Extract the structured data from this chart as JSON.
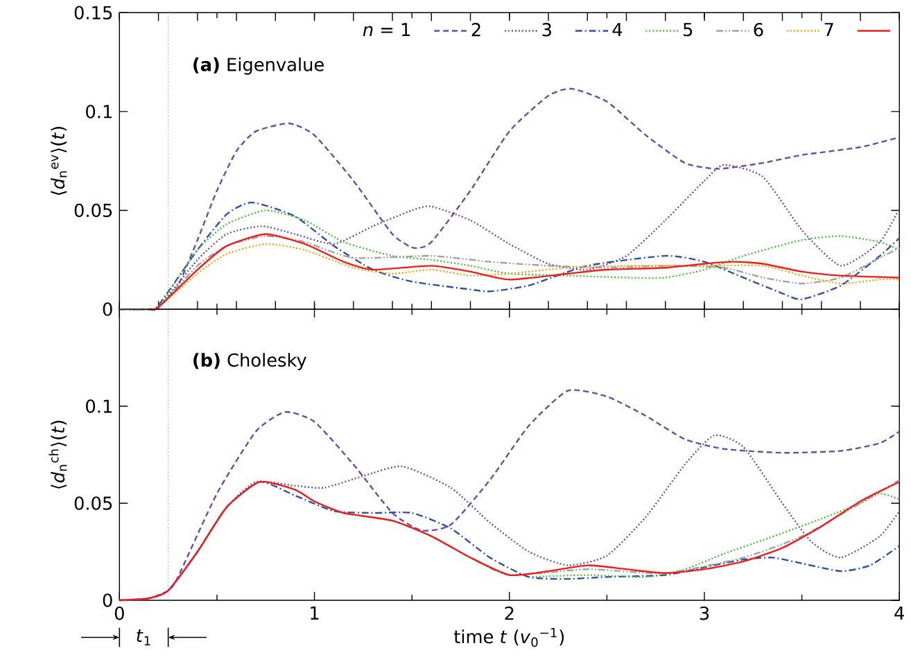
{
  "chart_data": [
    {
      "type": "line",
      "ylabel": "⟨*d*$_{n}$$^{ev}$⟩(*t*)",
      "xlim": [
        0,
        4
      ],
      "ylim": [
        0,
        0.15
      ],
      "xticks": [
        {
          "value": 0,
          "label": null
        },
        {
          "value": 0.5,
          "label": null
        },
        {
          "value": 1,
          "label": null
        },
        {
          "value": 1.5,
          "label": null
        },
        {
          "value": 2,
          "label": null
        },
        {
          "value": 2.5,
          "label": null
        },
        {
          "value": 3,
          "label": null
        },
        {
          "value": 3.5,
          "label": null
        },
        {
          "value": 4,
          "label": null
        }
      ],
      "yticks": [
        0,
        0.05,
        0.1,
        0.15
      ],
      "tick_labels": "y",
      "legend": "top",
      "annotations": [
        "**(a)** Eigenvalue"
      ],
      "ref_lines": [
        {
          "axis": "x",
          "value": 0.25,
          "color": "#b0b0b0",
          "line_style": "dotted"
        }
      ],
      "series": [
        {
          "name": "*n* = 1",
          "color": "#6a4aa8",
          "line_style": "dashed",
          "x": [
            0,
            0.15,
            0.2,
            0.3,
            0.4,
            0.5,
            0.6,
            0.7,
            0.87,
            1.0,
            1.2,
            1.4,
            1.51,
            1.6,
            1.8,
            2.0,
            2.2,
            2.32,
            2.5,
            2.7,
            2.9,
            3.07,
            3.3,
            3.5,
            3.8,
            4
          ],
          "values": [
            0,
            0,
            0.001,
            0.012,
            0.035,
            0.06,
            0.08,
            0.09,
            0.094,
            0.088,
            0.065,
            0.038,
            0.031,
            0.034,
            0.06,
            0.09,
            0.108,
            0.1115,
            0.105,
            0.088,
            0.074,
            0.071,
            0.074,
            0.078,
            0.082,
            0.087
          ]
        },
        {
          "name": "2",
          "color": "#6a4aa8",
          "line_style": "dotted",
          "x": [
            0,
            0.15,
            0.2,
            0.4,
            0.55,
            0.73,
            0.9,
            1.1,
            1.3,
            1.5,
            1.6,
            1.8,
            2.0,
            2.2,
            2.4,
            2.6,
            2.8,
            3.0,
            3.1,
            3.3,
            3.5,
            3.7,
            3.9,
            4
          ],
          "values": [
            0,
            0,
            0.001,
            0.025,
            0.038,
            0.042,
            0.038,
            0.033,
            0.042,
            0.05,
            0.052,
            0.045,
            0.033,
            0.023,
            0.02,
            0.027,
            0.045,
            0.065,
            0.073,
            0.067,
            0.04,
            0.022,
            0.034,
            0.051
          ]
        },
        {
          "name": "3",
          "color": "#2b50a8",
          "line_style": "dashdot",
          "x": [
            0,
            0.15,
            0.2,
            0.4,
            0.55,
            0.68,
            0.9,
            1.1,
            1.3,
            1.5,
            1.8,
            1.9,
            2.1,
            2.4,
            2.8,
            3.0,
            3.2,
            3.4,
            3.5,
            3.7,
            3.9,
            4
          ],
          "values": [
            0,
            0,
            0.002,
            0.03,
            0.048,
            0.054,
            0.047,
            0.032,
            0.02,
            0.014,
            0.01,
            0.009,
            0.012,
            0.022,
            0.027,
            0.024,
            0.016,
            0.008,
            0.005,
            0.012,
            0.027,
            0.036
          ]
        },
        {
          "name": "4",
          "color": "#44bb33",
          "line_style": "dotted",
          "x": [
            0,
            0.15,
            0.2,
            0.4,
            0.55,
            0.75,
            0.95,
            1.15,
            1.4,
            1.6,
            1.8,
            2.0,
            2.3,
            2.6,
            2.8,
            3.0,
            3.2,
            3.5,
            3.7,
            3.9,
            4
          ],
          "values": [
            0,
            0,
            0.001,
            0.03,
            0.043,
            0.05,
            0.045,
            0.034,
            0.027,
            0.025,
            0.022,
            0.018,
            0.017,
            0.016,
            0.016,
            0.02,
            0.027,
            0.035,
            0.037,
            0.034,
            0.03
          ]
        },
        {
          "name": "5",
          "color": "#a0a0a0",
          "line_style": "dashdotdot",
          "x": [
            0,
            0.15,
            0.2,
            0.4,
            0.55,
            0.75,
            0.95,
            1.2,
            1.6,
            1.9,
            2.2,
            2.5,
            2.8,
            3.1,
            3.3,
            3.5,
            3.7,
            3.9,
            4
          ],
          "values": [
            0,
            0,
            0.001,
            0.022,
            0.032,
            0.037,
            0.034,
            0.026,
            0.027,
            0.024,
            0.022,
            0.021,
            0.022,
            0.021,
            0.016,
            0.013,
            0.016,
            0.026,
            0.031
          ]
        },
        {
          "name": "6",
          "color": "#f5a000",
          "line_style": "dotted",
          "x": [
            0.15,
            0.2,
            0.4,
            0.55,
            0.75,
            0.95,
            1.2,
            1.4,
            1.6,
            1.8,
            2.0,
            2.3,
            2.6,
            3.0,
            3.3,
            3.5,
            3.7,
            3.9,
            4
          ],
          "values": [
            0,
            0.001,
            0.018,
            0.028,
            0.033,
            0.03,
            0.021,
            0.018,
            0.02,
            0.017,
            0.018,
            0.021,
            0.022,
            0.022,
            0.022,
            0.017,
            0.013,
            0.015,
            0.015
          ]
        },
        {
          "name": "7",
          "color": "#ee1c1c",
          "line_style": "solid",
          "x": [
            0.15,
            0.2,
            0.4,
            0.55,
            0.75,
            0.95,
            1.15,
            1.3,
            1.6,
            1.8,
            2.0,
            2.3,
            2.5,
            2.8,
            3.0,
            3.15,
            3.3,
            3.5,
            3.7,
            4
          ],
          "values": [
            0,
            0.001,
            0.02,
            0.032,
            0.038,
            0.033,
            0.024,
            0.02,
            0.022,
            0.019,
            0.015,
            0.018,
            0.02,
            0.021,
            0.023,
            0.024,
            0.023,
            0.019,
            0.017,
            0.016
          ]
        }
      ]
    },
    {
      "type": "line",
      "xlabel": "time *t* (*v*$_{0}$$^{−1}$)",
      "ylabel": "⟨*d*$_{n}$$^{ch}$⟩(*t*)",
      "xlim": [
        0,
        4
      ],
      "ylim": [
        0,
        0.15
      ],
      "xticks": [
        0,
        {
          "value": 0.5,
          "label": null
        },
        1,
        {
          "value": 1.5,
          "label": null
        },
        2,
        {
          "value": 2.5,
          "label": null
        },
        3,
        {
          "value": 3.5,
          "label": null
        },
        4
      ],
      "yticks": [
        0,
        0.05,
        0.1
      ],
      "annotations": [
        "**(b)** Cholesky"
      ],
      "ref_lines": [
        {
          "axis": "x",
          "value": 0.25,
          "color": "#b0b0b0",
          "line_style": "dotted",
          "label": "*t*$_{1}$"
        }
      ],
      "series": [
        {
          "color": "#6a4aa8",
          "line_style": "dashed",
          "x": [
            0,
            0.15,
            0.25,
            0.3,
            0.5,
            0.7,
            0.85,
            1.0,
            1.2,
            1.4,
            1.55,
            1.7,
            1.9,
            2.1,
            2.3,
            2.5,
            2.7,
            2.9,
            3.1,
            3.4,
            3.7,
            3.9,
            4
          ],
          "values": [
            0,
            0.001,
            0.005,
            0.012,
            0.055,
            0.087,
            0.097,
            0.092,
            0.07,
            0.045,
            0.036,
            0.039,
            0.062,
            0.09,
            0.108,
            0.105,
            0.095,
            0.083,
            0.078,
            0.076,
            0.077,
            0.081,
            0.087
          ]
        },
        {
          "color": "#6a4aa8",
          "line_style": "dotted",
          "x": [
            0,
            0.15,
            0.25,
            0.4,
            0.55,
            0.7,
            0.9,
            1.05,
            1.25,
            1.45,
            1.7,
            1.9,
            2.1,
            2.3,
            2.5,
            2.7,
            2.9,
            3.05,
            3.2,
            3.4,
            3.55,
            3.7,
            3.9,
            4
          ],
          "values": [
            0,
            0.001,
            0.005,
            0.025,
            0.048,
            0.061,
            0.059,
            0.058,
            0.064,
            0.069,
            0.058,
            0.04,
            0.025,
            0.018,
            0.023,
            0.043,
            0.07,
            0.085,
            0.079,
            0.05,
            0.03,
            0.022,
            0.033,
            0.046
          ]
        },
        {
          "color": "#2b50a8",
          "line_style": "dashdot",
          "x": [
            0,
            0.15,
            0.25,
            0.4,
            0.55,
            0.72,
            0.9,
            1.1,
            1.3,
            1.5,
            1.7,
            1.9,
            2.1,
            2.3,
            2.5,
            2.8,
            3.0,
            3.2,
            3.35,
            3.5,
            3.7,
            3.85,
            4
          ],
          "values": [
            0,
            0.001,
            0.005,
            0.025,
            0.048,
            0.061,
            0.054,
            0.046,
            0.045,
            0.045,
            0.037,
            0.022,
            0.012,
            0.011,
            0.012,
            0.013,
            0.017,
            0.021,
            0.022,
            0.019,
            0.015,
            0.018,
            0.028
          ]
        },
        {
          "color": "#44bb33",
          "line_style": "dotted",
          "x": [
            2.1,
            2.4,
            2.7,
            2.9,
            3.1,
            3.3,
            3.6,
            3.8,
            3.9,
            4
          ],
          "values": [
            0.012,
            0.013,
            0.012,
            0.016,
            0.024,
            0.031,
            0.042,
            0.05,
            0.055,
            0.052
          ]
        },
        {
          "color": "#a0a0a0",
          "line_style": "dashdotdot",
          "x": [
            0,
            0.15,
            0.25,
            0.4,
            0.55,
            0.72,
            0.9,
            1.0,
            1.15,
            1.4,
            1.6,
            1.8,
            2.0,
            2.4,
            2.8,
            3.2,
            3.5,
            3.8,
            4
          ],
          "values": [
            0,
            0.001,
            0.005,
            0.025,
            0.048,
            0.061,
            0.057,
            0.051,
            0.045,
            0.041,
            0.033,
            0.022,
            0.013,
            0.016,
            0.014,
            0.022,
            0.033,
            0.05,
            0.062
          ]
        },
        {
          "color": "#ee1c1c",
          "line_style": "solid",
          "x": [
            0,
            0.15,
            0.25,
            0.4,
            0.55,
            0.72,
            0.9,
            1.0,
            1.15,
            1.4,
            1.6,
            1.8,
            2.0,
            2.2,
            2.4,
            2.6,
            2.8,
            3.0,
            3.2,
            3.4,
            3.6,
            3.8,
            4
          ],
          "values": [
            0,
            0.001,
            0.005,
            0.025,
            0.048,
            0.061,
            0.057,
            0.051,
            0.045,
            0.041,
            0.033,
            0.022,
            0.013,
            0.015,
            0.018,
            0.016,
            0.014,
            0.016,
            0.02,
            0.027,
            0.038,
            0.051,
            0.061
          ]
        }
      ]
    }
  ]
}
